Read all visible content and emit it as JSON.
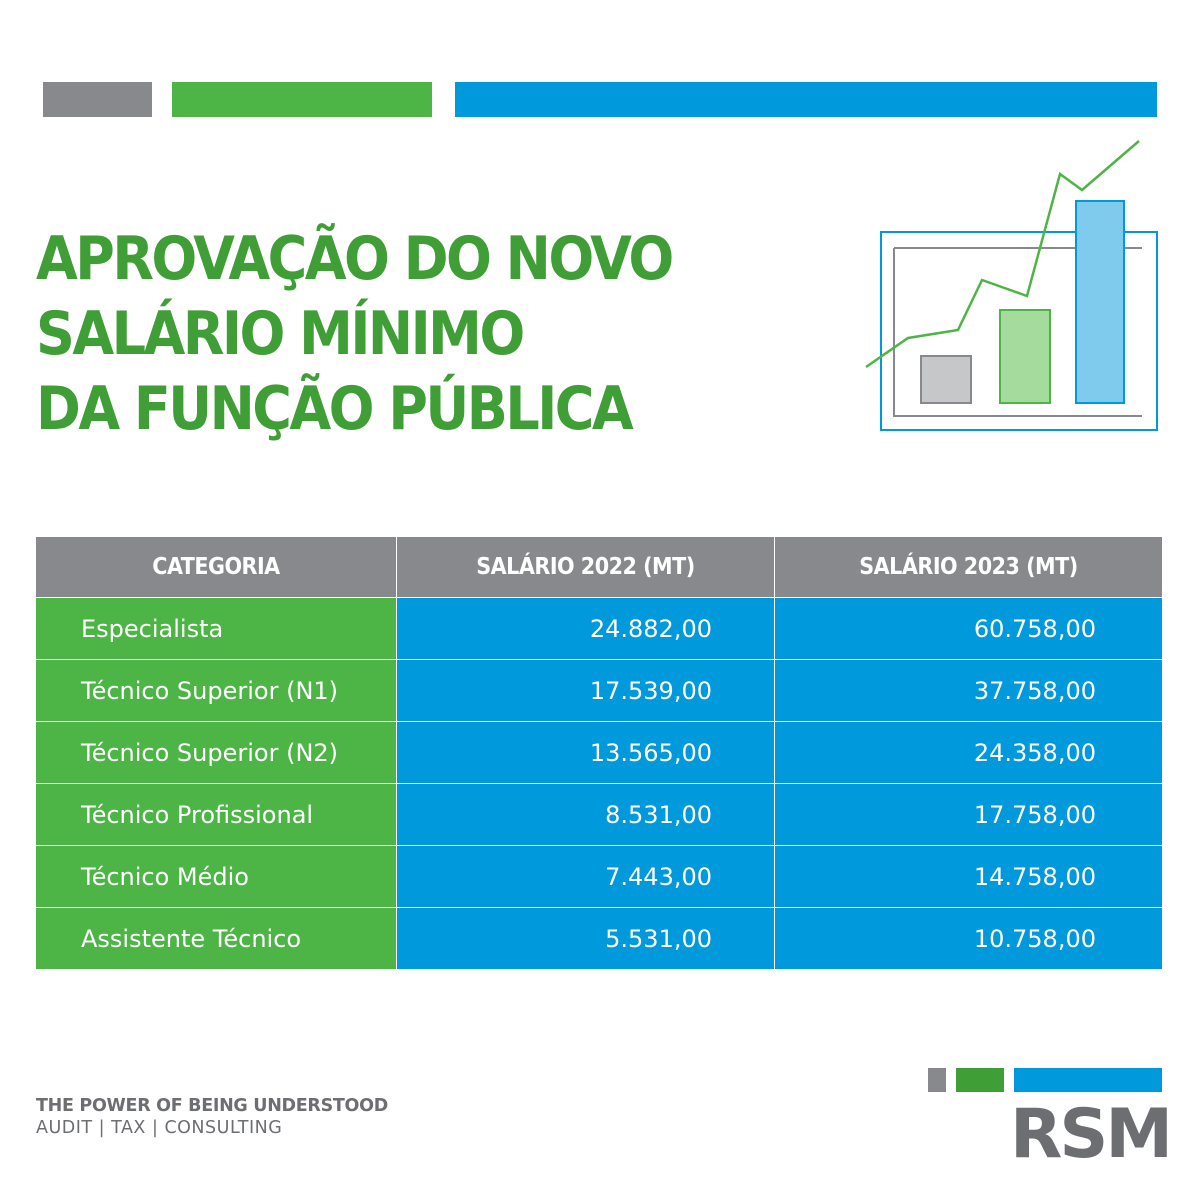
{
  "title": {
    "line1": "APROVAÇÃO DO NOVO",
    "line2": "SALÁRIO MÍNIMO",
    "line3": "DA FUNÇÃO PÚBLICA"
  },
  "table": {
    "headers": [
      "CATEGORIA",
      "SALÁRIO 2022 (MT)",
      "SALÁRIO 2023 (MT)"
    ],
    "rows": [
      {
        "category": "Especialista",
        "salary_2022": "24.882,00",
        "salary_2023": "60.758,00"
      },
      {
        "category": "Técnico Superior (N1)",
        "salary_2022": "17.539,00",
        "salary_2023": "37.758,00"
      },
      {
        "category": "Técnico Superior (N2)",
        "salary_2022": "13.565,00",
        "salary_2023": "24.358,00"
      },
      {
        "category": "Técnico Profissional",
        "salary_2022": "8.531,00",
        "salary_2023": "17.758,00"
      },
      {
        "category": "Técnico Médio",
        "salary_2022": "7.443,00",
        "salary_2023": "14.758,00"
      },
      {
        "category": "Assistente Técnico",
        "salary_2022": "5.531,00",
        "salary_2023": "10.758,00"
      }
    ]
  },
  "footer": {
    "tagline": "THE POWER OF BEING UNDERSTOOD",
    "services": "AUDIT | TAX | CONSULTING"
  },
  "logo": {
    "text": "RSM"
  },
  "colors": {
    "brand_gray": "#87898c",
    "brand_green": "#4db546",
    "brand_dark_green": "#3f9e35",
    "brand_blue": "#0099dc",
    "text_gray": "#6d6e71"
  },
  "icons": {
    "illustration": "rising-bar-chart-icon"
  }
}
